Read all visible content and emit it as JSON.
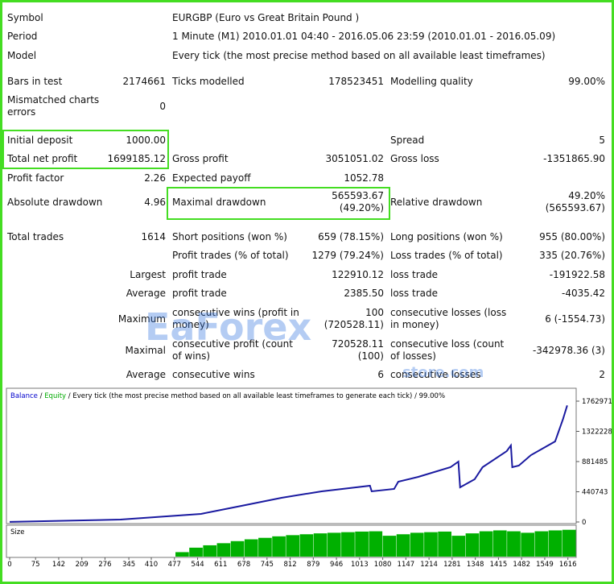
{
  "report": {
    "rows": [
      [
        "Symbol",
        "EURGBP (Euro vs Great Britain Pound )"
      ],
      [
        "Period",
        "1 Minute (M1) 2010.01.01 04:40 - 2016.05.06 23:59 (2010.01.01 - 2016.05.09)"
      ],
      [
        "Model",
        "Every tick (the most precise method based on all available least timeframes)"
      ],
      [
        "Bars in test",
        "2174661",
        "Ticks modelled",
        "178523451",
        "Modelling quality",
        "99.00%"
      ],
      [
        "Mismatched charts errors",
        "0",
        null,
        null,
        null,
        null
      ],
      [
        "Initial deposit",
        "1000.00",
        null,
        null,
        "Spread",
        "5"
      ],
      [
        "Total net profit",
        "1699185.12",
        "Gross profit",
        "3051051.02",
        "Gross loss",
        "-1351865.90"
      ],
      [
        "Profit factor",
        "2.26",
        "Expected payoff",
        "1052.78",
        null,
        null
      ],
      [
        "Absolute drawdown",
        "4.96",
        "Maximal drawdown",
        "565593.67 (49.20%)",
        "Relative drawdown",
        "49.20% (565593.67)"
      ],
      [
        "Total trades",
        "1614",
        "Short positions (won %)",
        "659 (78.15%)",
        "Long positions (won %)",
        "955 (80.00%)"
      ],
      [
        null,
        null,
        "Profit trades (% of total)",
        "1279 (79.24%)",
        "Loss trades (% of total)",
        "335 (20.76%)"
      ],
      [
        null,
        "Largest",
        "profit trade",
        "122910.12",
        "loss trade",
        "-191922.58"
      ],
      [
        null,
        "Average",
        "profit trade",
        "2385.50",
        "loss trade",
        "-4035.42"
      ],
      [
        null,
        "Maximum",
        "consecutive wins (profit in money)",
        "100 (720528.11)",
        "consecutive losses (loss in money)",
        "6 (-1554.73)"
      ],
      [
        null,
        "Maximal",
        "consecutive profit (count of wins)",
        "720528.11 (100)",
        "consecutive loss (count of losses)",
        "-342978.36 (3)"
      ],
      [
        null,
        "Average",
        "consecutive wins",
        "6",
        "consecutive losses",
        "2"
      ]
    ]
  },
  "watermark": [
    "EaForex",
    "store.com"
  ],
  "chart_data": {
    "type": "line",
    "header": [
      {
        "text": "Balance",
        "color": "#0000cc"
      },
      {
        "text": " / ",
        "color": "#000000"
      },
      {
        "text": "Equity",
        "color": "#00aa00"
      },
      {
        "text": " / Every tick (the most precise method based on all available least timeframes to generate each tick) / 99.00%",
        "color": "#000000"
      }
    ],
    "x": [
      0,
      321,
      554,
      671,
      787,
      903,
      1043,
      1048,
      1113,
      1125,
      1183,
      1276,
      1299,
      1304,
      1346,
      1369,
      1439,
      1451,
      1455,
      1474,
      1509,
      1579,
      1602,
      1614
    ],
    "series": [
      {
        "name": "Balance",
        "color": "#1a1aa0",
        "values": [
          1000,
          35000,
          118000,
          235000,
          353000,
          447000,
          529000,
          447000,
          482000,
          588000,
          658000,
          799000,
          881000,
          505000,
          623000,
          799000,
          1034000,
          1117000,
          799000,
          823000,
          975000,
          1175000,
          1504000,
          1700185
        ]
      }
    ],
    "xlim": [
      0,
      1640
    ],
    "xticks": [
      0,
      75,
      142,
      209,
      276,
      345,
      410,
      477,
      544,
      611,
      678,
      745,
      812,
      879,
      946,
      1013,
      1080,
      1147,
      1214,
      1281,
      1348,
      1415,
      1482,
      1549,
      1616
    ],
    "ylim": [
      0,
      1927500
    ],
    "yticks": [
      0,
      440743,
      881485,
      1322228,
      1762971
    ],
    "size": {
      "label": "Size",
      "color": "#00b000",
      "ylim": [
        0,
        1
      ],
      "x": [
        480,
        520,
        560,
        600,
        640,
        680,
        720,
        760,
        800,
        840,
        880,
        920,
        960,
        1000,
        1040,
        1080,
        1120,
        1160,
        1200,
        1240,
        1280,
        1320,
        1360,
        1400,
        1440,
        1480,
        1520,
        1560,
        1600
      ],
      "values": [
        0.15,
        0.3,
        0.38,
        0.45,
        0.52,
        0.58,
        0.63,
        0.68,
        0.72,
        0.75,
        0.78,
        0.8,
        0.82,
        0.84,
        0.85,
        0.7,
        0.75,
        0.8,
        0.82,
        0.84,
        0.7,
        0.78,
        0.85,
        0.88,
        0.85,
        0.8,
        0.85,
        0.88,
        0.9
      ]
    }
  }
}
